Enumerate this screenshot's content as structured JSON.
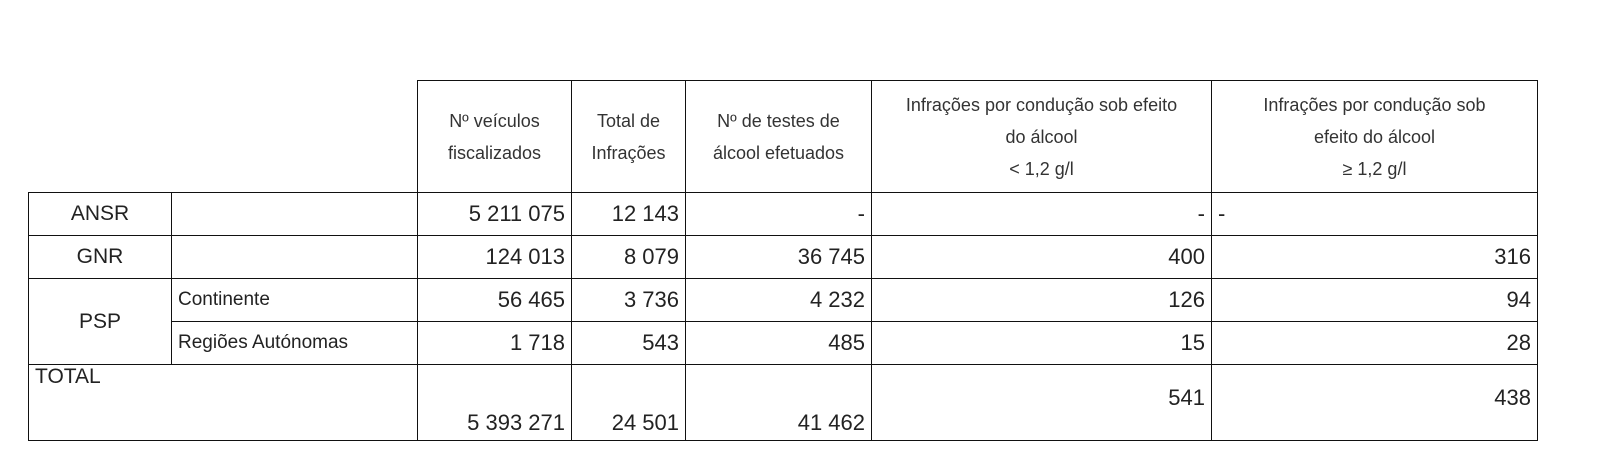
{
  "table": {
    "headers": {
      "vehicles": [
        "Nº veículos",
        "fiscalizados"
      ],
      "infractions": [
        "Total de",
        "Infrações"
      ],
      "tests": [
        "Nº de testes de",
        "álcool efetuados"
      ],
      "alcohol_low": [
        "Infrações por condução sob efeito",
        "do álcool",
        "< 1,2 g/l"
      ],
      "alcohol_high": [
        "Infrações por condução sob",
        "efeito do álcool",
        "≥ 1,2 g/l"
      ]
    },
    "rows": {
      "ansr": {
        "entity": "ANSR",
        "vehicles": "5 211 075",
        "infractions": "12 143",
        "tests": "-",
        "alcohol_low": "-",
        "alcohol_high": "-"
      },
      "gnr": {
        "entity": "GNR",
        "vehicles": "124 013",
        "infractions": "8 079",
        "tests": "36 745",
        "alcohol_low": "400",
        "alcohol_high": "316"
      },
      "psp": {
        "entity": "PSP",
        "continente": {
          "label": "Continente",
          "vehicles": "56 465",
          "infractions": "3 736",
          "tests": "4 232",
          "alcohol_low": "126",
          "alcohol_high": "94"
        },
        "regioes": {
          "label": "Regiões Autónomas",
          "vehicles": "1 718",
          "infractions": "543",
          "tests": "485",
          "alcohol_low": "15",
          "alcohol_high": "28"
        }
      },
      "total": {
        "label": "TOTAL",
        "vehicles": "5 393 271",
        "infractions": "24 501",
        "tests": "41 462",
        "alcohol_low": "541",
        "alcohol_high": "438"
      }
    }
  }
}
